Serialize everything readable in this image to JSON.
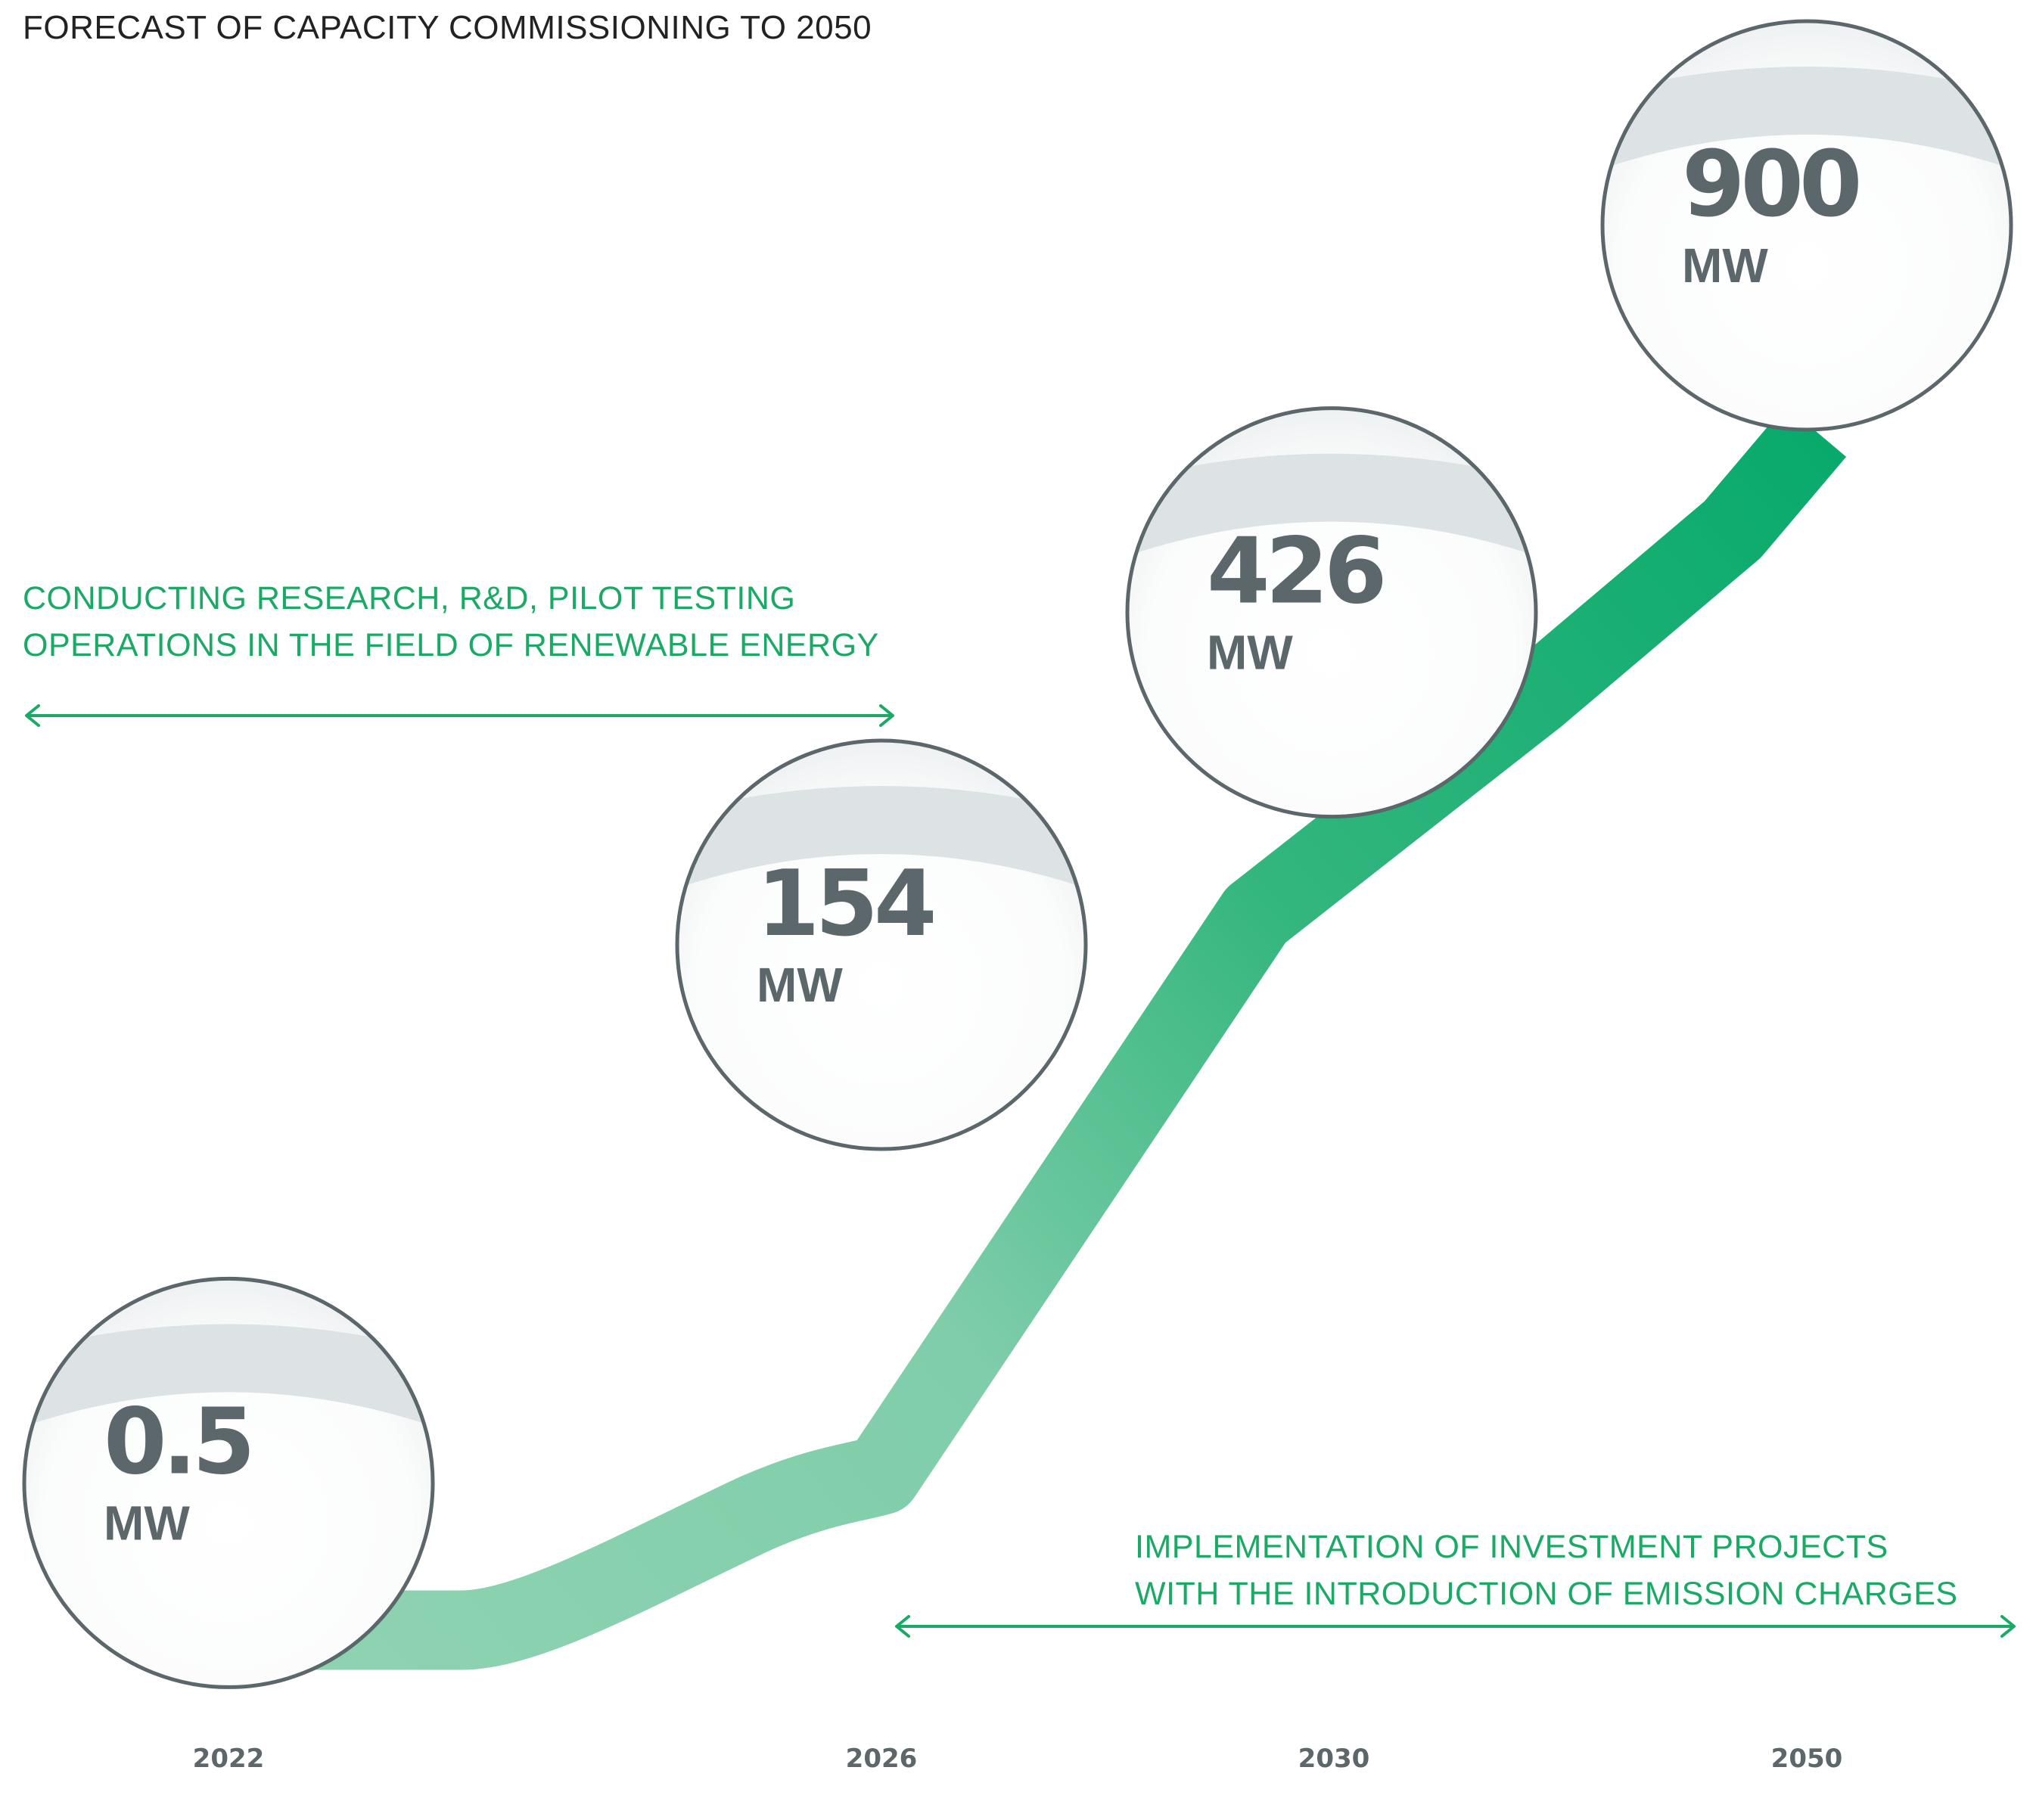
{
  "chart_data": {
    "type": "line",
    "title": "FORECAST OF CAPACITY COMMISSIONING TO 2050",
    "categories": [
      "2022",
      "2026",
      "2030",
      "2050"
    ],
    "values": [
      0.5,
      154,
      426,
      900
    ],
    "value_labels": [
      "0.5",
      "154",
      "426",
      "900"
    ],
    "unit": "MW",
    "xlabel": "",
    "ylabel": "",
    "grid": false,
    "phases": [
      {
        "text_lines": [
          "CONDUCTING RESEARCH, R&D, PILOT TESTING",
          "OPERATIONS IN THE FIELD OF RENEWABLE ENERGY"
        ],
        "from": "2022",
        "to": "2026"
      },
      {
        "text_lines": [
          "IMPLEMENTATION OF INVESTMENT PROJECTS",
          "WITH THE INTRODUCTION OF EMISSION CHARGES"
        ],
        "from": "2026",
        "to": "2050"
      }
    ]
  },
  "colors": {
    "green_light": "#8fd3b2",
    "green_dark": "#00a868",
    "accent_text": "#1aaa66",
    "bubble_outline": "#5c676b",
    "bubble_band": "#dde3e5",
    "value_text": "#5c676b"
  }
}
